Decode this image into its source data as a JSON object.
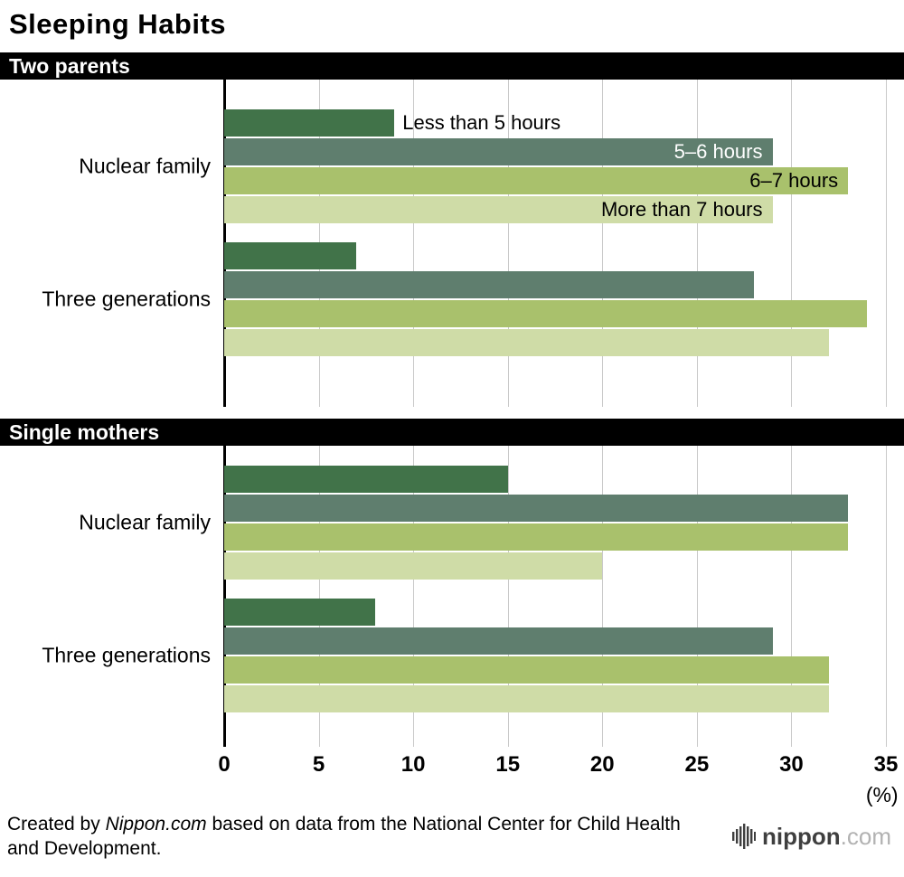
{
  "title": "Sleeping Habits",
  "chart_data": {
    "type": "bar",
    "orientation": "horizontal",
    "xlim": [
      0,
      35
    ],
    "xticks": [
      0,
      5,
      10,
      15,
      20,
      25,
      30,
      35
    ],
    "x_unit": "(%)",
    "grid": true,
    "series_labels": [
      "Less than 5 hours",
      "5–6 hours",
      "6–7 hours",
      "More than 7 hours"
    ],
    "series_label_styles": [
      "outside-dark",
      "inside-light",
      "inside-dark",
      "inside-dark"
    ],
    "colors": [
      "#417349",
      "#5f7e6e",
      "#a9c16c",
      "#cfdca7"
    ],
    "sections": [
      {
        "title": "Two parents",
        "groups": [
          {
            "label": "Nuclear family",
            "values": [
              9,
              29,
              33,
              29
            ]
          },
          {
            "label": "Three generations",
            "values": [
              7,
              28,
              34,
              32
            ]
          }
        ]
      },
      {
        "title": "Single mothers",
        "groups": [
          {
            "label": "Nuclear family",
            "values": [
              15,
              33,
              33,
              20
            ]
          },
          {
            "label": "Three generations",
            "values": [
              8,
              29,
              32,
              32
            ]
          }
        ]
      }
    ]
  },
  "footer": {
    "credit_prefix": "Created by ",
    "credit_source": "Nippon.com",
    "credit_suffix": " based on data from the National Center for Child Health and Development.",
    "logo_main": "nippon",
    "logo_suffix": ".com"
  }
}
